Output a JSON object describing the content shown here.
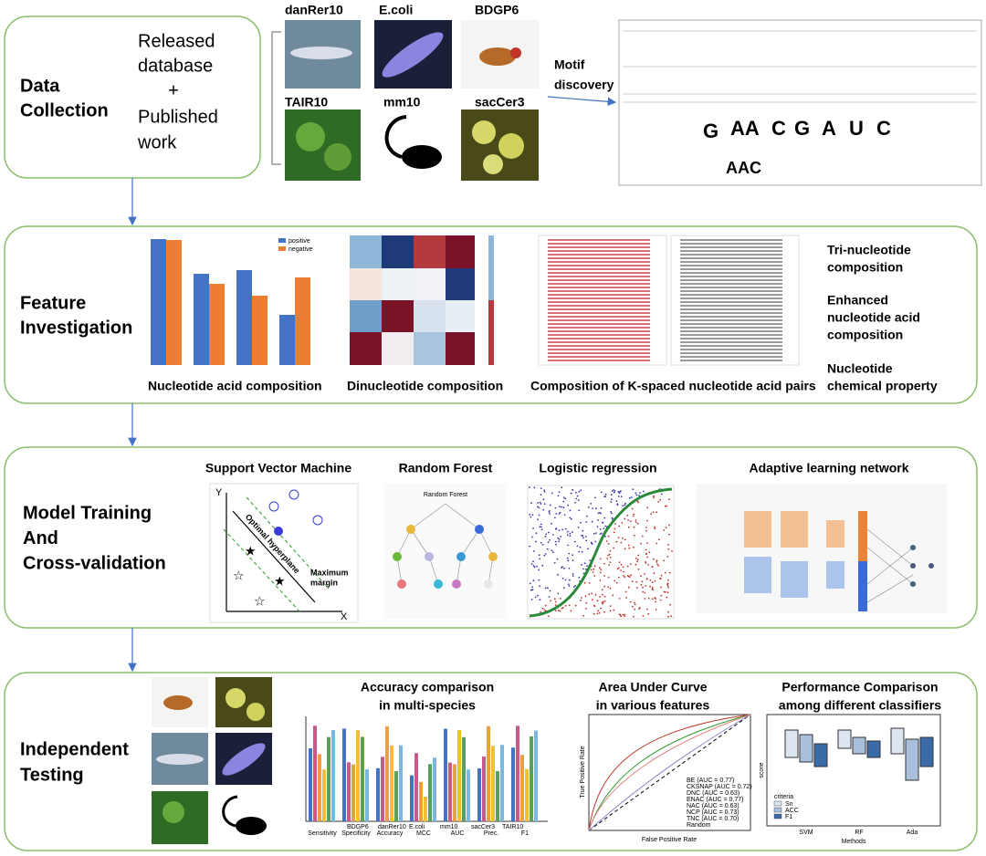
{
  "data_collection": {
    "title": [
      "Data",
      "Collection"
    ],
    "source": [
      "Released",
      "database",
      "+",
      "Published",
      "work"
    ],
    "species": [
      "danRer10",
      "E.coli",
      "BDGP6",
      "TAIR10",
      "mm10",
      "sacCer3"
    ],
    "motif_label": [
      "Motif",
      "discovery"
    ]
  },
  "feature_investigation": {
    "title": [
      "Feature",
      "Investigation"
    ],
    "bar_legend": [
      "positive",
      "negative"
    ],
    "captions": [
      "Nucleotide acid composition",
      "Dinucleotide composition",
      "Composition of K-spaced nucleotide acid pairs"
    ],
    "features": [
      [
        "Tri-nucleotide",
        "composition"
      ],
      [
        "Enhanced",
        "nucleotide acid",
        "composition"
      ],
      [
        "Nucleotide",
        "chemical property"
      ]
    ]
  },
  "model_training": {
    "title": [
      "Model Training",
      "And",
      "Cross-validation"
    ],
    "models": [
      "Support Vector Machine",
      "Random Forest",
      "Logistic regression",
      "Adaptive learning network"
    ],
    "svm_labels": {
      "x": "X",
      "y": "Y",
      "hyperplane": "Optimal hyperplane",
      "margin": [
        "Maximum",
        "margin"
      ]
    },
    "rf_label": "Random Forest"
  },
  "independent_testing": {
    "title": [
      "Independent",
      "Testing"
    ],
    "charts": [
      {
        "title": [
          "Accuracy comparison",
          "in multi-species"
        ],
        "x_labels": [
          "Sensitivity",
          "Specificity",
          "Accuracy",
          "MCC",
          "AUC",
          "Prec.",
          "F1"
        ],
        "legend": [
          "BDGP6",
          "danRer10",
          "E.coli",
          "mm10",
          "sacCer3",
          "TAIR10"
        ]
      },
      {
        "title": [
          "Area Under Curve",
          "in various features"
        ],
        "x_label": "False Positive Rate",
        "y_label": "True Positive Rate",
        "legend": [
          "BE (AUC = 0.77)",
          "CKSNAP (AUC = 0.72)",
          "DNC (AUC = 0.63)",
          "ENAC (AUC = 0.77)",
          "NAC (AUC = 0.63)",
          "NCP (AUC = 0.73)",
          "TNC (AUC = 0.70)",
          "Random"
        ]
      },
      {
        "title": [
          "Performance Comparison",
          "among different classifiers"
        ],
        "x_labels": [
          "SVM",
          "RF",
          "Ada"
        ],
        "x_label": "Methods",
        "y_label": "score",
        "legend_title": "criteria",
        "legend": [
          "Sn",
          "ACC",
          "F1"
        ]
      }
    ]
  }
}
